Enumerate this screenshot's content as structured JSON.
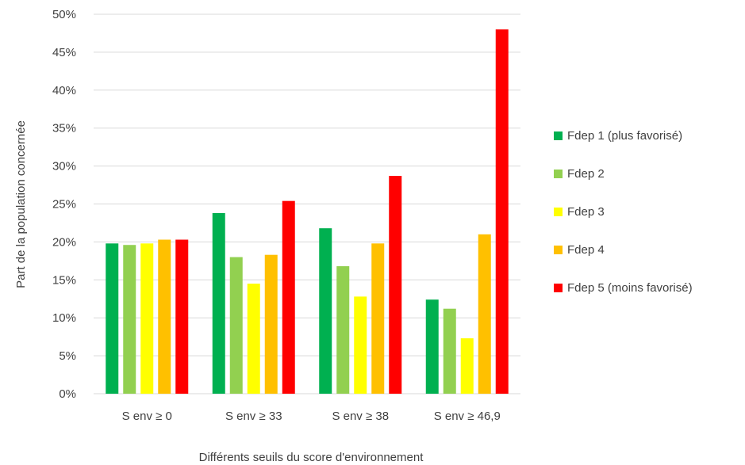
{
  "chart_data": {
    "type": "bar",
    "title": "",
    "xlabel": "Différents seuils du score d'environnement",
    "ylabel": "Part de la population concernée",
    "ylim": [
      0,
      50
    ],
    "yticks": [
      "0%",
      "5%",
      "10%",
      "15%",
      "20%",
      "25%",
      "30%",
      "35%",
      "40%",
      "45%",
      "50%"
    ],
    "y_unit": "%",
    "grid": true,
    "legend_position": "right",
    "categories": [
      "S env ≥ 0",
      "S env ≥  33",
      "S env ≥  38",
      "S env ≥  46,9"
    ],
    "series": [
      {
        "name": "Fdep 1 (plus favorisé)",
        "color": "#00b050",
        "values": [
          19.8,
          23.8,
          21.8,
          12.4
        ]
      },
      {
        "name": "Fdep 2",
        "color": "#92d050",
        "values": [
          19.6,
          18.0,
          16.8,
          11.2
        ]
      },
      {
        "name": "Fdep 3",
        "color": "#ffff00",
        "values": [
          19.8,
          14.5,
          12.8,
          7.3
        ]
      },
      {
        "name": "Fdep 4",
        "color": "#ffc000",
        "values": [
          20.3,
          18.3,
          19.8,
          21.0
        ]
      },
      {
        "name": "Fdep 5 (moins favorisé)",
        "color": "#ff0000",
        "values": [
          20.3,
          25.4,
          28.7,
          48.0
        ]
      }
    ]
  }
}
